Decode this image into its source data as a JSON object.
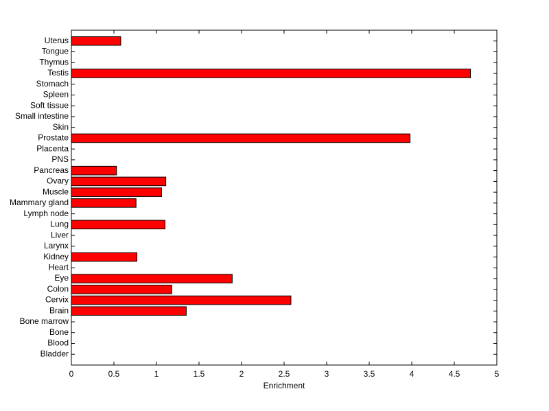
{
  "chart_data": {
    "type": "barh",
    "xlabel": "Enrichment",
    "categories": [
      "Bladder",
      "Blood",
      "Bone",
      "Bone marrow",
      "Brain",
      "Cervix",
      "Colon",
      "Eye",
      "Heart",
      "Kidney",
      "Larynx",
      "Liver",
      "Lung",
      "Lymph node",
      "Mammary gland",
      "Muscle",
      "Ovary",
      "Pancreas",
      "PNS",
      "Placenta",
      "Prostate",
      "Skin",
      "Small intestine",
      "Soft tissue",
      "Spleen",
      "Stomach",
      "Testis",
      "Thymus",
      "Tongue",
      "Uterus"
    ],
    "values": [
      0,
      0,
      0,
      0,
      1.35,
      2.58,
      1.18,
      1.89,
      0,
      0.77,
      0,
      0,
      1.1,
      0,
      0.76,
      1.06,
      1.11,
      0.53,
      0,
      0,
      3.98,
      0,
      0,
      0,
      0,
      0,
      4.69,
      0,
      0,
      0.58
    ],
    "color": "#ff0000",
    "xlim": [
      0,
      5
    ],
    "xticks": [
      0,
      0.5,
      1,
      1.5,
      2,
      2.5,
      3,
      3.5,
      4,
      4.5,
      5
    ]
  }
}
